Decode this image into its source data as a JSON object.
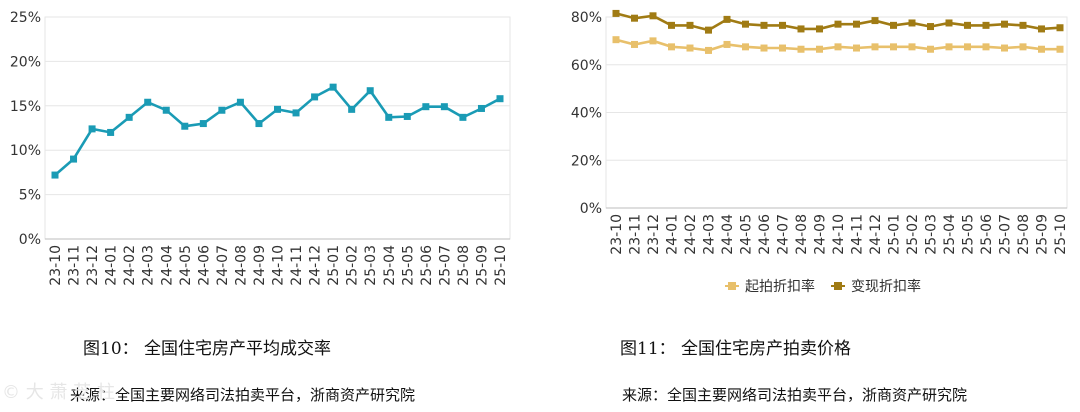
{
  "chart_data": [
    {
      "type": "line",
      "title": "",
      "xlabel": "",
      "ylabel": "",
      "ylim": [
        0,
        25
      ],
      "y_ticks": [
        "25%",
        "20%",
        "15%",
        "10%",
        "5%",
        "0%"
      ],
      "grid": true,
      "categories": [
        "23-10",
        "23-11",
        "23-12",
        "24-01",
        "24-02",
        "24-03",
        "24-04",
        "24-05",
        "24-06",
        "24-07",
        "24-08",
        "24-09",
        "24-10",
        "24-11",
        "24-12",
        "25-01",
        "25-02",
        "25-03",
        "25-04",
        "25-05",
        "25-06",
        "25-07",
        "25-08",
        "25-09",
        "25-10"
      ],
      "series": [
        {
          "name": "",
          "color": "#1a9bb5",
          "values": [
            7.2,
            9.0,
            12.4,
            12.0,
            13.7,
            15.4,
            14.5,
            12.7,
            13.0,
            14.5,
            15.4,
            13.0,
            14.6,
            14.2,
            16.0,
            17.1,
            14.6,
            16.7,
            13.7,
            13.8,
            14.9,
            14.9,
            13.7,
            14.7,
            15.8
          ]
        }
      ]
    },
    {
      "type": "line",
      "title": "",
      "xlabel": "",
      "ylabel": "",
      "ylim": [
        0,
        80
      ],
      "y_ticks": [
        "80%",
        "60%",
        "40%",
        "20%",
        "0%"
      ],
      "grid": true,
      "legend_position": "bottom",
      "categories": [
        "23-10",
        "23-11",
        "23-12",
        "24-01",
        "24-02",
        "24-03",
        "24-04",
        "24-05",
        "24-06",
        "24-07",
        "24-08",
        "24-09",
        "24-10",
        "24-11",
        "24-12",
        "25-01",
        "25-02",
        "25-03",
        "25-04",
        "25-05",
        "25-06",
        "25-07",
        "25-08",
        "25-09",
        "25-10"
      ],
      "series": [
        {
          "name": "起拍折扣率",
          "color": "#e8c06b",
          "values": [
            70.5,
            68.5,
            70.0,
            67.5,
            67.0,
            66.0,
            68.5,
            67.5,
            67.0,
            67.0,
            66.5,
            66.5,
            67.5,
            67.0,
            67.5,
            67.5,
            67.5,
            66.5,
            67.5,
            67.5,
            67.5,
            67.0,
            67.5,
            66.5,
            66.5
          ]
        },
        {
          "name": "变现折扣率",
          "color": "#a07b14",
          "values": [
            81.5,
            79.5,
            80.5,
            76.5,
            76.5,
            74.5,
            79.0,
            77.0,
            76.5,
            76.5,
            75.0,
            75.0,
            77.0,
            77.0,
            78.5,
            76.5,
            77.5,
            76.0,
            77.5,
            76.5,
            76.5,
            77.0,
            76.5,
            75.0,
            75.5
          ]
        }
      ]
    }
  ],
  "captions": {
    "fig10": "图10：   全国住宅房产平均成交率",
    "fig11": "图11：   全国住宅房产拍卖价格",
    "source_left": "来源：全国主要网络司法拍卖平台，浙商资产研究院",
    "source_right": "来源：全国主要网络司法拍卖平台，浙商资产研究院",
    "watermark": "© 大  萧  芝  柱"
  }
}
